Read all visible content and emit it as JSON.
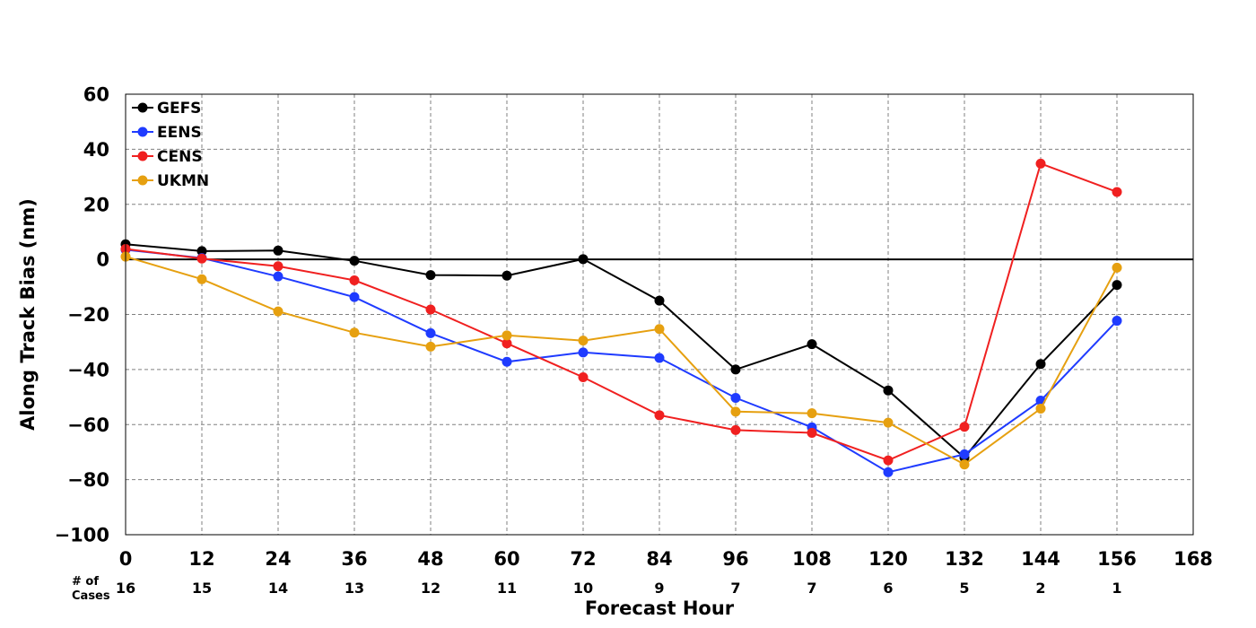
{
  "chart_data": {
    "type": "line",
    "xlabel": "Forecast Hour",
    "ylabel": "Along Track Bias (nm)",
    "xlim": [
      0,
      168
    ],
    "ylim": [
      -100,
      60
    ],
    "xticks": [
      0,
      12,
      24,
      36,
      48,
      60,
      72,
      84,
      96,
      108,
      120,
      132,
      144,
      156,
      168
    ],
    "yticks": [
      60,
      40,
      20,
      0,
      -20,
      -40,
      -60,
      -80,
      -100
    ],
    "xtick_labels": [
      "0",
      "12",
      "24",
      "36",
      "48",
      "60",
      "72",
      "84",
      "96",
      "108",
      "120",
      "132",
      "144",
      "156",
      "168"
    ],
    "ytick_labels": [
      "60",
      "40",
      "20",
      "0",
      "−20",
      "−40",
      "−60",
      "−80",
      "−100"
    ],
    "grid": true,
    "legend_position": "top-left",
    "zero_line": true,
    "cases_title": [
      "# of",
      "Cases"
    ],
    "cases": {
      "x": [
        0,
        12,
        24,
        36,
        48,
        60,
        72,
        84,
        96,
        108,
        120,
        132,
        144,
        156
      ],
      "counts": [
        "16",
        "15",
        "14",
        "13",
        "12",
        "11",
        "10",
        "9",
        "7",
        "7",
        "6",
        "5",
        "2",
        "1"
      ]
    },
    "x": [
      0,
      12,
      24,
      36,
      48,
      60,
      72,
      84,
      96,
      108,
      120,
      132,
      144,
      156
    ],
    "series": [
      {
        "name": "GEFS",
        "color": "#000000",
        "values": [
          5.5,
          3,
          3.2,
          -0.5,
          -5.7,
          -5.9,
          0.1,
          -15,
          -40,
          -30.8,
          -47.6,
          -72,
          -38,
          -9.3
        ]
      },
      {
        "name": "EENS",
        "color": "#1f3bff",
        "values": [
          3.5,
          0.5,
          -6.2,
          -13.7,
          -26.8,
          -37.2,
          -33.8,
          -35.8,
          -50.3,
          -61,
          -77.3,
          -70.8,
          -51.3,
          -22.3
        ]
      },
      {
        "name": "CENS",
        "color": "#f02020",
        "values": [
          3.8,
          0.3,
          -2.5,
          -7.6,
          -18.2,
          -30.5,
          -42.8,
          -56.6,
          -62,
          -63,
          -73,
          -60.8,
          34.8,
          24.5
        ]
      },
      {
        "name": "UKMN",
        "color": "#e6a010",
        "values": [
          1,
          -7.2,
          -18.9,
          -26.6,
          -31.7,
          -27.6,
          -29.5,
          -25.3,
          -55.3,
          -55.9,
          -59.3,
          -74.5,
          -54.2,
          -3
        ]
      }
    ]
  }
}
